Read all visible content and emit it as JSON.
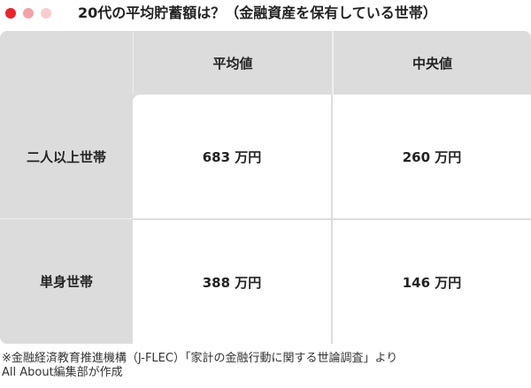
{
  "header": {
    "title": "20代の平均貯蓄額は？（金融資産を保有している世帯）"
  },
  "table": {
    "columns": [
      "平均値",
      "中央値"
    ],
    "rows": [
      {
        "label": "二人以上世帯",
        "cells": [
          "683 万円",
          "260 万円"
        ]
      },
      {
        "label": "単身世帯",
        "cells": [
          "388 万円",
          "146 万円"
        ]
      }
    ]
  },
  "footer": {
    "lines": [
      "※金融経済教育推進機構（J-FLEC）「家計の金融行動に関する世論調査」より",
      "All About編集部が作成"
    ]
  }
}
